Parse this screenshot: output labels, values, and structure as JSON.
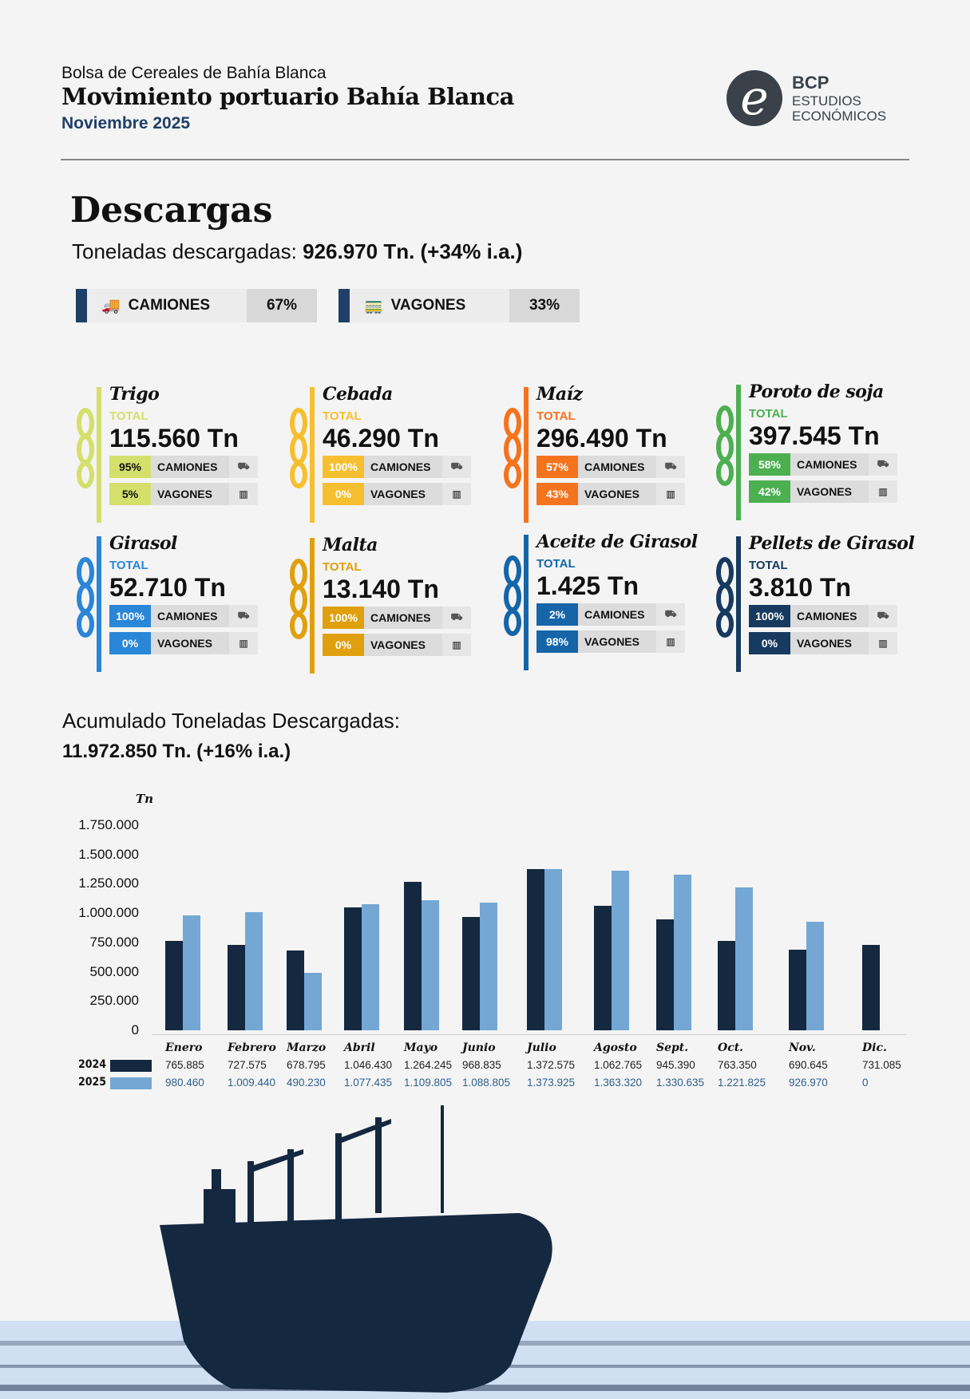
{
  "header": {
    "org": "Bolsa de Cereales de Bahía Blanca",
    "title": "Movimiento portuario Bahía Blanca",
    "period": "Noviembre 2025",
    "logo_main": "BCP",
    "logo_sub1": "ESTUDIOS",
    "logo_sub2": "ECONÓMICOS"
  },
  "descargas": {
    "title": "Descargas",
    "subtitle_label": "Toneladas descargadas:",
    "subtitle_value": "926.970 Tn. (+34% i.a.)",
    "camiones_label": "CAMIONES",
    "camiones_pct": "67%",
    "vagones_label": "VAGONES",
    "vagones_pct": "33%"
  },
  "total_label": "TOTAL",
  "camiones": "CAMIONES",
  "vagones": "VAGONES",
  "products": [
    {
      "name": "Trigo",
      "total": "115.560 Tn",
      "cam": "95%",
      "vag": "5%",
      "color": "#d4e06b",
      "text": "#111"
    },
    {
      "name": "Cebada",
      "total": "46.290 Tn",
      "cam": "100%",
      "vag": "0%",
      "color": "#f6bf2f",
      "text": "#fff"
    },
    {
      "name": "Maíz",
      "total": "296.490 Tn",
      "cam": "57%",
      "vag": "43%",
      "color": "#f4731e",
      "text": "#fff"
    },
    {
      "name": "Poroto de soja",
      "total": "397.545 Tn",
      "cam": "58%",
      "vag": "42%",
      "color": "#4caf50",
      "text": "#fff"
    },
    {
      "name": "Girasol",
      "total": "52.710 Tn",
      "cam": "100%",
      "vag": "0%",
      "color": "#2a86d6",
      "text": "#fff"
    },
    {
      "name": "Malta",
      "total": "13.140 Tn",
      "cam": "100%",
      "vag": "0%",
      "color": "#e0a00e",
      "text": "#fff"
    },
    {
      "name": "Aceite de Girasol",
      "total": "1.425 Tn",
      "cam": "2%",
      "vag": "98%",
      "color": "#1565a8",
      "text": "#fff"
    },
    {
      "name": "Pellets de Girasol",
      "total": "3.810 Tn",
      "cam": "100%",
      "vag": "0%",
      "color": "#173a60",
      "text": "#fff"
    }
  ],
  "acumulado": {
    "label": "Acumulado Toneladas Descargadas:",
    "value": "11.972.850 Tn. (+16% i.a.)"
  },
  "chart_data": {
    "type": "bar",
    "ylabel": "Tn",
    "ylim": [
      0,
      1750000
    ],
    "yticks": [
      "1.750.000",
      "1.500.000",
      "1.250.000",
      "1.000.000",
      "750.000",
      "500.000",
      "250.000",
      "0"
    ],
    "categories": [
      "Enero",
      "Febrero",
      "Marzo",
      "Abril",
      "Mayo",
      "Junio",
      "Julio",
      "Agosto",
      "Sept.",
      "Oct.",
      "Nov.",
      "Dic."
    ],
    "series": [
      {
        "name": "2024",
        "color": "#142840",
        "values": [
          765885,
          727575,
          678795,
          1046430,
          1264245,
          968835,
          1372575,
          1062765,
          945390,
          763350,
          690645,
          731085
        ],
        "labels": [
          "765.885",
          "727.575",
          "678.795",
          "1.046.430",
          "1.264.245",
          "968.835",
          "1.372.575",
          "1.062.765",
          "945.390",
          "763.350",
          "690.645",
          "731.085"
        ]
      },
      {
        "name": "2025",
        "color": "#74a7d4",
        "values": [
          980460,
          1009440,
          490230,
          1077435,
          1109805,
          1088805,
          1373925,
          1363320,
          1330635,
          1221825,
          926970,
          0
        ],
        "labels": [
          "980.460",
          "1.009.440",
          "490.230",
          "1.077.435",
          "1.109.805",
          "1.088.805",
          "1.373.925",
          "1.363.320",
          "1.330.635",
          "1.221.825",
          "926.970",
          "0"
        ]
      }
    ]
  }
}
